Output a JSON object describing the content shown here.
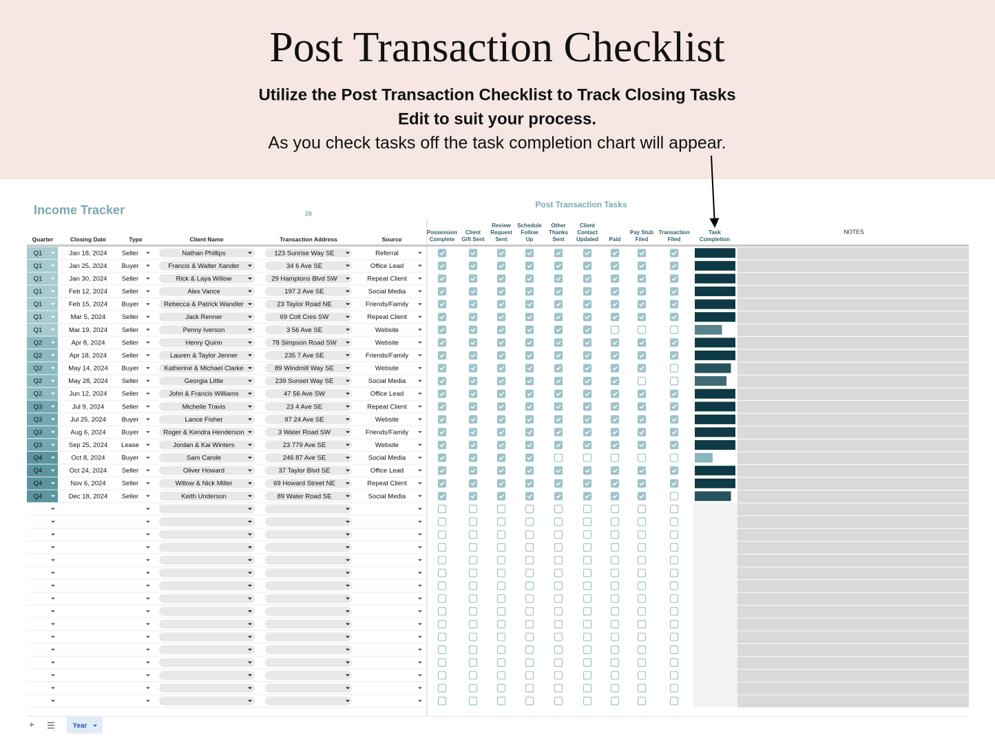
{
  "header": {
    "title": "Post Transaction Checklist",
    "subtitle_lines": [
      "Utilize the Post Transaction Checklist to Track Closing Tasks",
      "Edit to suit your process."
    ],
    "note": "As you check tasks off the task completion chart will appear."
  },
  "sheet": {
    "title": "Income Tracker",
    "year_cell": "20",
    "tasks_title": "Post Transaction Tasks",
    "columns": [
      "Quarter",
      "Closing Date",
      "Type",
      "Client Name",
      "Transaction Address",
      "Source"
    ],
    "task_columns": [
      [
        "Possession",
        "Complete"
      ],
      [
        "Client",
        "Gift Sent"
      ],
      [
        "Review",
        "Request",
        "Sent"
      ],
      [
        "Schedule",
        "Follow",
        "Up"
      ],
      [
        "Other",
        "Thanks",
        "Sent"
      ],
      [
        "Client",
        "Contact",
        "Updated"
      ],
      [
        "Paid"
      ],
      [
        "Pay Stub",
        "Filed"
      ],
      [
        "Transaction",
        "Filed"
      ]
    ],
    "completion_header": [
      "Task",
      "Completion"
    ],
    "notes_header": "NOTES",
    "rows": [
      {
        "cells": [
          "Q1",
          "Jan 18, 2024",
          "Seller",
          "Nathan Phillips",
          "123 Sunrise Way SE",
          "Referral"
        ],
        "tasks": [
          1,
          1,
          1,
          1,
          1,
          1,
          1,
          1,
          1
        ],
        "completion": 1
      },
      {
        "cells": [
          "Q1",
          "Jan 25, 2024",
          "Buyer",
          "Francis & Walter Xander",
          "34 6 Ave SE",
          "Office Lead"
        ],
        "tasks": [
          1,
          1,
          1,
          1,
          1,
          1,
          1,
          1,
          1
        ],
        "completion": 1
      },
      {
        "cells": [
          "Q1",
          "Jan 30, 2024",
          "Seller",
          "Rick & Laya Willow",
          "29 Hamptons Blvd SW",
          "Repeat Client"
        ],
        "tasks": [
          1,
          1,
          1,
          1,
          1,
          1,
          1,
          1,
          1
        ],
        "completion": 1
      },
      {
        "cells": [
          "Q1",
          "Feb 12, 2024",
          "Seller",
          "Alex Vance",
          "197 2 Ave SE",
          "Social Media"
        ],
        "tasks": [
          1,
          1,
          1,
          1,
          1,
          1,
          1,
          1,
          1
        ],
        "completion": 1
      },
      {
        "cells": [
          "Q1",
          "Feb 15, 2024",
          "Buyer",
          "Rebecca & Patrick Wandler",
          "23 Taylor Road NE",
          "Friends/Family"
        ],
        "tasks": [
          1,
          1,
          1,
          1,
          1,
          1,
          1,
          1,
          1
        ],
        "completion": 1
      },
      {
        "cells": [
          "Q1",
          "Mar 5, 2024",
          "Seller",
          "Jack Renner",
          "69 Colt Cres SW",
          "Repeat Client"
        ],
        "tasks": [
          1,
          1,
          1,
          1,
          1,
          1,
          1,
          1,
          1
        ],
        "completion": 1
      },
      {
        "cells": [
          "Q1",
          "Mar 19, 2024",
          "Seller",
          "Penny Iverson",
          "3 56 Ave SE",
          "Website"
        ],
        "tasks": [
          1,
          1,
          1,
          1,
          1,
          1,
          0,
          0,
          0
        ],
        "completion": 0.67
      },
      {
        "cells": [
          "Q2",
          "Apr 8, 2024",
          "Seller",
          "Henry Quinn",
          "78 Simpson Road SW",
          "Website"
        ],
        "tasks": [
          1,
          1,
          1,
          1,
          1,
          1,
          1,
          1,
          1
        ],
        "completion": 1
      },
      {
        "cells": [
          "Q2",
          "Apr 18, 2024",
          "Seller",
          "Lauren & Taylor Jenner",
          "235 7 Ave SE",
          "Friends/Family"
        ],
        "tasks": [
          1,
          1,
          1,
          1,
          1,
          1,
          1,
          1,
          1
        ],
        "completion": 1
      },
      {
        "cells": [
          "Q2",
          "May 14, 2024",
          "Buyer",
          "Katherine & Michael Clarke",
          "89 Windmill  Way SE",
          "Website"
        ],
        "tasks": [
          1,
          1,
          1,
          1,
          1,
          1,
          1,
          1,
          0
        ],
        "completion": 0.89
      },
      {
        "cells": [
          "Q2",
          "May 28, 2024",
          "Seller",
          "Georgia Little",
          "239 Sunset Way SE",
          "Social Media"
        ],
        "tasks": [
          1,
          1,
          1,
          1,
          1,
          1,
          1,
          0,
          0
        ],
        "completion": 0.78
      },
      {
        "cells": [
          "Q2",
          "Jun 12, 2024",
          "Seller",
          "John & Francis Williams",
          "47 56 Ave SW",
          "Office Lead"
        ],
        "tasks": [
          1,
          1,
          1,
          1,
          1,
          1,
          1,
          1,
          1
        ],
        "completion": 1
      },
      {
        "cells": [
          "Q3",
          "Jul 9, 2024",
          "Seller",
          "Michelle Travis",
          "23 4 Ave SE",
          "Repeat Client"
        ],
        "tasks": [
          1,
          1,
          1,
          1,
          1,
          1,
          1,
          1,
          1
        ],
        "completion": 1
      },
      {
        "cells": [
          "Q3",
          "Jul 25, 2024",
          "Buyer",
          "Lance Fisher",
          "97 24 Ave SE",
          "Website"
        ],
        "tasks": [
          1,
          1,
          1,
          1,
          1,
          1,
          1,
          1,
          1
        ],
        "completion": 1
      },
      {
        "cells": [
          "Q3",
          "Aug 6, 2024",
          "Buyer",
          "Roger & Kendra Henderson",
          "3 Water Road SW",
          "Friends/Family"
        ],
        "tasks": [
          1,
          1,
          1,
          1,
          1,
          1,
          1,
          1,
          1
        ],
        "completion": 1
      },
      {
        "cells": [
          "Q3",
          "Sep 25, 2024",
          "Lease",
          "Jordan & Kai Winters",
          "23 779 Ave SE",
          "Website"
        ],
        "tasks": [
          1,
          1,
          1,
          1,
          1,
          1,
          1,
          1,
          1
        ],
        "completion": 1
      },
      {
        "cells": [
          "Q4",
          "Oct 8, 2024",
          "Buyer",
          "Sam Carole",
          "246 87 Ave SE",
          "Social Media"
        ],
        "tasks": [
          1,
          1,
          1,
          1,
          0,
          0,
          0,
          0,
          0
        ],
        "completion": 0.44
      },
      {
        "cells": [
          "Q4",
          "Oct 24, 2024",
          "Seller",
          "Oliver Howard",
          "37 Taylor Blvd SE",
          "Office Lead"
        ],
        "tasks": [
          1,
          1,
          1,
          1,
          1,
          1,
          1,
          1,
          1
        ],
        "completion": 1
      },
      {
        "cells": [
          "Q4",
          "Nov 6, 2024",
          "Seller",
          "Willow & Nick Miller",
          "69 Howard Street NE",
          "Repeat Client"
        ],
        "tasks": [
          1,
          1,
          1,
          1,
          1,
          1,
          1,
          1,
          1
        ],
        "completion": 1
      },
      {
        "cells": [
          "Q4",
          "Dec 18, 2024",
          "Seller",
          "Keith Underson",
          "89 Water Road SE",
          "Social Media"
        ],
        "tasks": [
          1,
          1,
          1,
          1,
          1,
          1,
          1,
          1,
          0
        ],
        "completion": 0.89
      }
    ],
    "tab": "Year"
  }
}
